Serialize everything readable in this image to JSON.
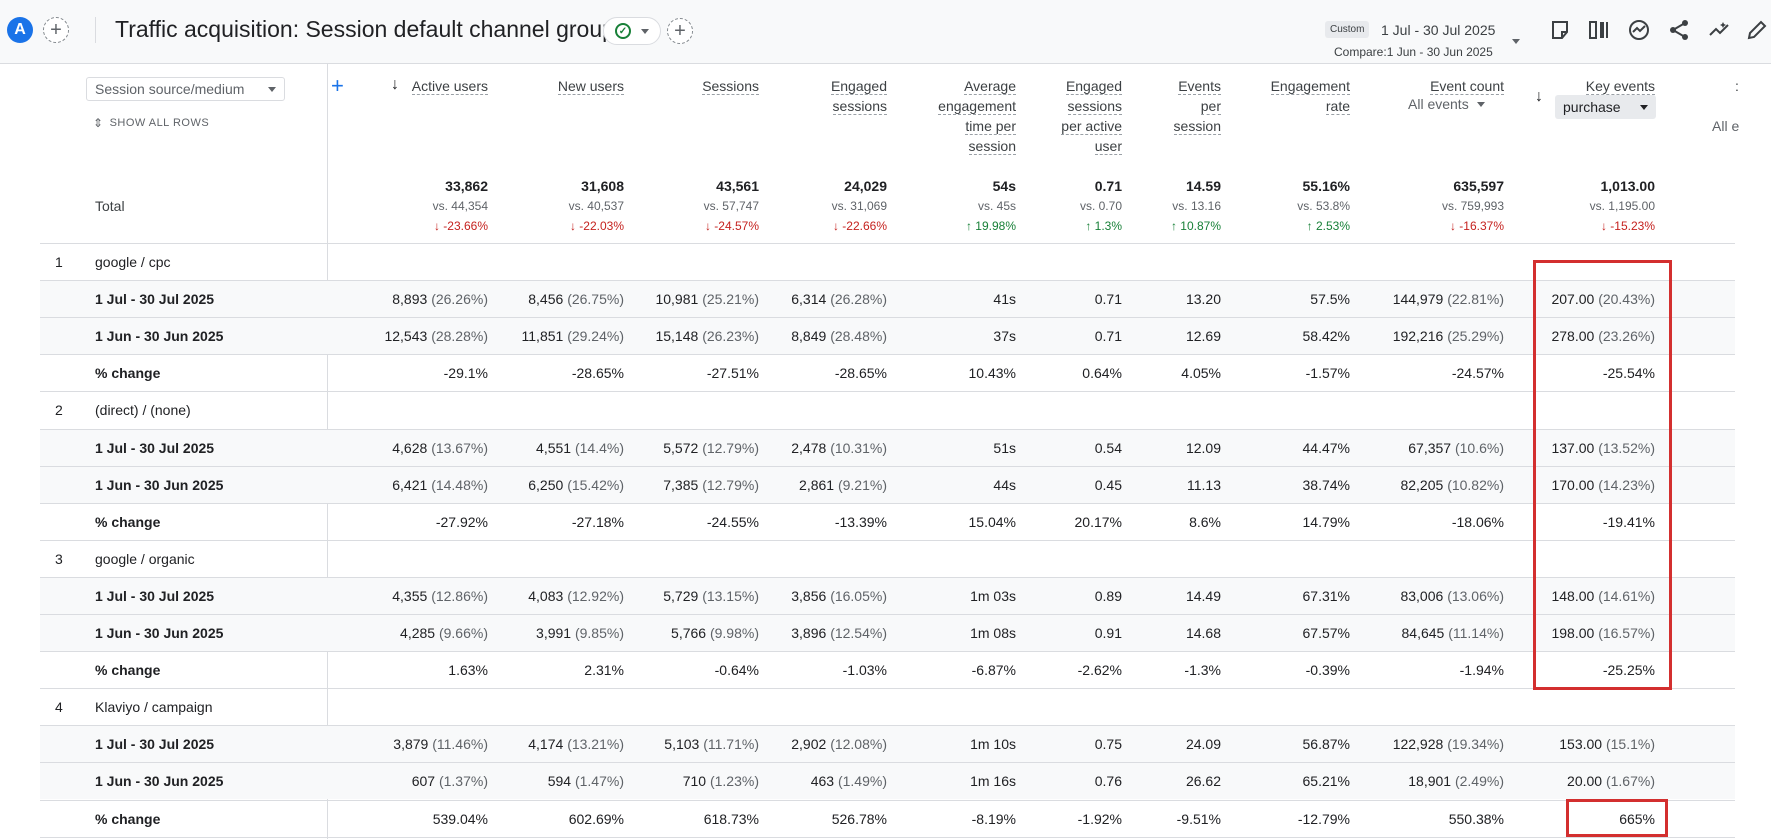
{
  "header": {
    "avatar_letter": "A",
    "title": "Traffic acquisition: Session default channel group",
    "date_badge": "Custom",
    "date_range": "1 Jul - 30 Jul 2025",
    "compare": "Compare:1 Jun - 30 Jun 2025",
    "check_glyph": "✓"
  },
  "table": {
    "dimension": "Session source/medium",
    "show_all_rows": "SHOW ALL ROWS",
    "total_label": "Total",
    "all_events": "All events",
    "purchase": "purchase",
    "cut_off_text": "All e",
    "columns": [
      {
        "lines": [
          "Active users"
        ]
      },
      {
        "lines": [
          "New users"
        ]
      },
      {
        "lines": [
          "Sessions"
        ]
      },
      {
        "lines": [
          "Engaged",
          "sessions"
        ]
      },
      {
        "lines": [
          "Average",
          "engagement",
          "time per",
          "session"
        ]
      },
      {
        "lines": [
          "Engaged",
          "sessions",
          "per active",
          "user"
        ]
      },
      {
        "lines": [
          "Events",
          "per",
          "session"
        ]
      },
      {
        "lines": [
          "Engagement",
          "rate"
        ]
      },
      {
        "lines": [
          "Event count"
        ]
      },
      {
        "lines": [
          "Key events"
        ]
      }
    ],
    "totals": [
      {
        "value": "33,862",
        "vs": "vs. 44,354",
        "change": "↓ -23.66%",
        "dir": "neg"
      },
      {
        "value": "31,608",
        "vs": "vs. 40,537",
        "change": "↓ -22.03%",
        "dir": "neg"
      },
      {
        "value": "43,561",
        "vs": "vs. 57,747",
        "change": "↓ -24.57%",
        "dir": "neg"
      },
      {
        "value": "24,029",
        "vs": "vs. 31,069",
        "change": "↓ -22.66%",
        "dir": "neg"
      },
      {
        "value": "54s",
        "vs": "vs. 45s",
        "change": "↑ 19.98%",
        "dir": "pos"
      },
      {
        "value": "0.71",
        "vs": "vs. 0.70",
        "change": "↑ 1.3%",
        "dir": "pos"
      },
      {
        "value": "14.59",
        "vs": "vs. 13.16",
        "change": "↑ 10.87%",
        "dir": "pos"
      },
      {
        "value": "55.16%",
        "vs": "vs. 53.8%",
        "change": "↑ 2.53%",
        "dir": "pos"
      },
      {
        "value": "635,597",
        "vs": "vs. 759,993",
        "change": "↓ -16.37%",
        "dir": "neg"
      },
      {
        "value": "1,013.00",
        "vs": "vs. 1,195.00",
        "change": "↓ -15.23%",
        "dir": "neg"
      }
    ],
    "groups": [
      {
        "num": "1",
        "label": "google / cpc",
        "rows": [
          {
            "label": "1 Jul - 30 Jul 2025",
            "cells": [
              [
                "8,893",
                "(26.26%)"
              ],
              [
                "8,456",
                "(26.75%)"
              ],
              [
                "10,981",
                "(25.21%)"
              ],
              [
                "6,314",
                "(26.28%)"
              ],
              [
                "41s",
                ""
              ],
              [
                "0.71",
                ""
              ],
              [
                "13.20",
                ""
              ],
              [
                "57.5%",
                ""
              ],
              [
                "144,979",
                "(22.81%)"
              ],
              [
                "207.00",
                "(20.43%)"
              ]
            ]
          },
          {
            "label": "1 Jun - 30 Jun 2025",
            "cells": [
              [
                "12,543",
                "(28.28%)"
              ],
              [
                "11,851",
                "(29.24%)"
              ],
              [
                "15,148",
                "(26.23%)"
              ],
              [
                "8,849",
                "(28.48%)"
              ],
              [
                "37s",
                ""
              ],
              [
                "0.71",
                ""
              ],
              [
                "12.69",
                ""
              ],
              [
                "58.42%",
                ""
              ],
              [
                "192,216",
                "(25.29%)"
              ],
              [
                "278.00",
                "(23.26%)"
              ]
            ]
          },
          {
            "label": "% change",
            "cells": [
              [
                "-29.1%",
                ""
              ],
              [
                "-28.65%",
                ""
              ],
              [
                "-27.51%",
                ""
              ],
              [
                "-28.65%",
                ""
              ],
              [
                "10.43%",
                ""
              ],
              [
                "0.64%",
                ""
              ],
              [
                "4.05%",
                ""
              ],
              [
                "-1.57%",
                ""
              ],
              [
                "-24.57%",
                ""
              ],
              [
                "-25.54%",
                ""
              ]
            ]
          }
        ]
      },
      {
        "num": "2",
        "label": "(direct) / (none)",
        "rows": [
          {
            "label": "1 Jul - 30 Jul 2025",
            "cells": [
              [
                "4,628",
                "(13.67%)"
              ],
              [
                "4,551",
                "(14.4%)"
              ],
              [
                "5,572",
                "(12.79%)"
              ],
              [
                "2,478",
                "(10.31%)"
              ],
              [
                "51s",
                ""
              ],
              [
                "0.54",
                ""
              ],
              [
                "12.09",
                ""
              ],
              [
                "44.47%",
                ""
              ],
              [
                "67,357",
                "(10.6%)"
              ],
              [
                "137.00",
                "(13.52%)"
              ]
            ]
          },
          {
            "label": "1 Jun - 30 Jun 2025",
            "cells": [
              [
                "6,421",
                "(14.48%)"
              ],
              [
                "6,250",
                "(15.42%)"
              ],
              [
                "7,385",
                "(12.79%)"
              ],
              [
                "2,861",
                "(9.21%)"
              ],
              [
                "44s",
                ""
              ],
              [
                "0.45",
                ""
              ],
              [
                "11.13",
                ""
              ],
              [
                "38.74%",
                ""
              ],
              [
                "82,205",
                "(10.82%)"
              ],
              [
                "170.00",
                "(14.23%)"
              ]
            ]
          },
          {
            "label": "% change",
            "cells": [
              [
                "-27.92%",
                ""
              ],
              [
                "-27.18%",
                ""
              ],
              [
                "-24.55%",
                ""
              ],
              [
                "-13.39%",
                ""
              ],
              [
                "15.04%",
                ""
              ],
              [
                "20.17%",
                ""
              ],
              [
                "8.6%",
                ""
              ],
              [
                "14.79%",
                ""
              ],
              [
                "-18.06%",
                ""
              ],
              [
                "-19.41%",
                ""
              ]
            ]
          }
        ]
      },
      {
        "num": "3",
        "label": "google / organic",
        "rows": [
          {
            "label": "1 Jul - 30 Jul 2025",
            "cells": [
              [
                "4,355",
                "(12.86%)"
              ],
              [
                "4,083",
                "(12.92%)"
              ],
              [
                "5,729",
                "(13.15%)"
              ],
              [
                "3,856",
                "(16.05%)"
              ],
              [
                "1m 03s",
                ""
              ],
              [
                "0.89",
                ""
              ],
              [
                "14.49",
                ""
              ],
              [
                "67.31%",
                ""
              ],
              [
                "83,006",
                "(13.06%)"
              ],
              [
                "148.00",
                "(14.61%)"
              ]
            ]
          },
          {
            "label": "1 Jun - 30 Jun 2025",
            "cells": [
              [
                "4,285",
                "(9.66%)"
              ],
              [
                "3,991",
                "(9.85%)"
              ],
              [
                "5,766",
                "(9.98%)"
              ],
              [
                "3,896",
                "(12.54%)"
              ],
              [
                "1m 08s",
                ""
              ],
              [
                "0.91",
                ""
              ],
              [
                "14.68",
                ""
              ],
              [
                "67.57%",
                ""
              ],
              [
                "84,645",
                "(11.14%)"
              ],
              [
                "198.00",
                "(16.57%)"
              ]
            ]
          },
          {
            "label": "% change",
            "cells": [
              [
                "1.63%",
                ""
              ],
              [
                "2.31%",
                ""
              ],
              [
                "-0.64%",
                ""
              ],
              [
                "-1.03%",
                ""
              ],
              [
                "-6.87%",
                ""
              ],
              [
                "-2.62%",
                ""
              ],
              [
                "-1.3%",
                ""
              ],
              [
                "-0.39%",
                ""
              ],
              [
                "-1.94%",
                ""
              ],
              [
                "-25.25%",
                ""
              ]
            ]
          }
        ]
      },
      {
        "num": "4",
        "label": "Klaviyo / campaign",
        "rows": [
          {
            "label": "1 Jul - 30 Jul 2025",
            "cells": [
              [
                "3,879",
                "(11.46%)"
              ],
              [
                "4,174",
                "(13.21%)"
              ],
              [
                "5,103",
                "(11.71%)"
              ],
              [
                "2,902",
                "(12.08%)"
              ],
              [
                "1m 10s",
                ""
              ],
              [
                "0.75",
                ""
              ],
              [
                "24.09",
                ""
              ],
              [
                "56.87%",
                ""
              ],
              [
                "122,928",
                "(19.34%)"
              ],
              [
                "153.00",
                "(15.1%)"
              ]
            ]
          },
          {
            "label": "1 Jun - 30 Jun 2025",
            "cells": [
              [
                "607",
                "(1.37%)"
              ],
              [
                "594",
                "(1.47%)"
              ],
              [
                "710",
                "(1.23%)"
              ],
              [
                "463",
                "(1.49%)"
              ],
              [
                "1m 16s",
                ""
              ],
              [
                "0.76",
                ""
              ],
              [
                "26.62",
                ""
              ],
              [
                "65.21%",
                ""
              ],
              [
                "18,901",
                "(2.49%)"
              ],
              [
                "20.00",
                "(1.67%)"
              ]
            ]
          },
          {
            "label": "% change",
            "cells": [
              [
                "539.04%",
                ""
              ],
              [
                "602.69%",
                ""
              ],
              [
                "618.73%",
                ""
              ],
              [
                "526.78%",
                ""
              ],
              [
                "-8.19%",
                ""
              ],
              [
                "-1.92%",
                ""
              ],
              [
                "-9.51%",
                ""
              ],
              [
                "-12.79%",
                ""
              ],
              [
                "550.38%",
                ""
              ],
              [
                "665%",
                ""
              ]
            ]
          }
        ]
      }
    ]
  }
}
